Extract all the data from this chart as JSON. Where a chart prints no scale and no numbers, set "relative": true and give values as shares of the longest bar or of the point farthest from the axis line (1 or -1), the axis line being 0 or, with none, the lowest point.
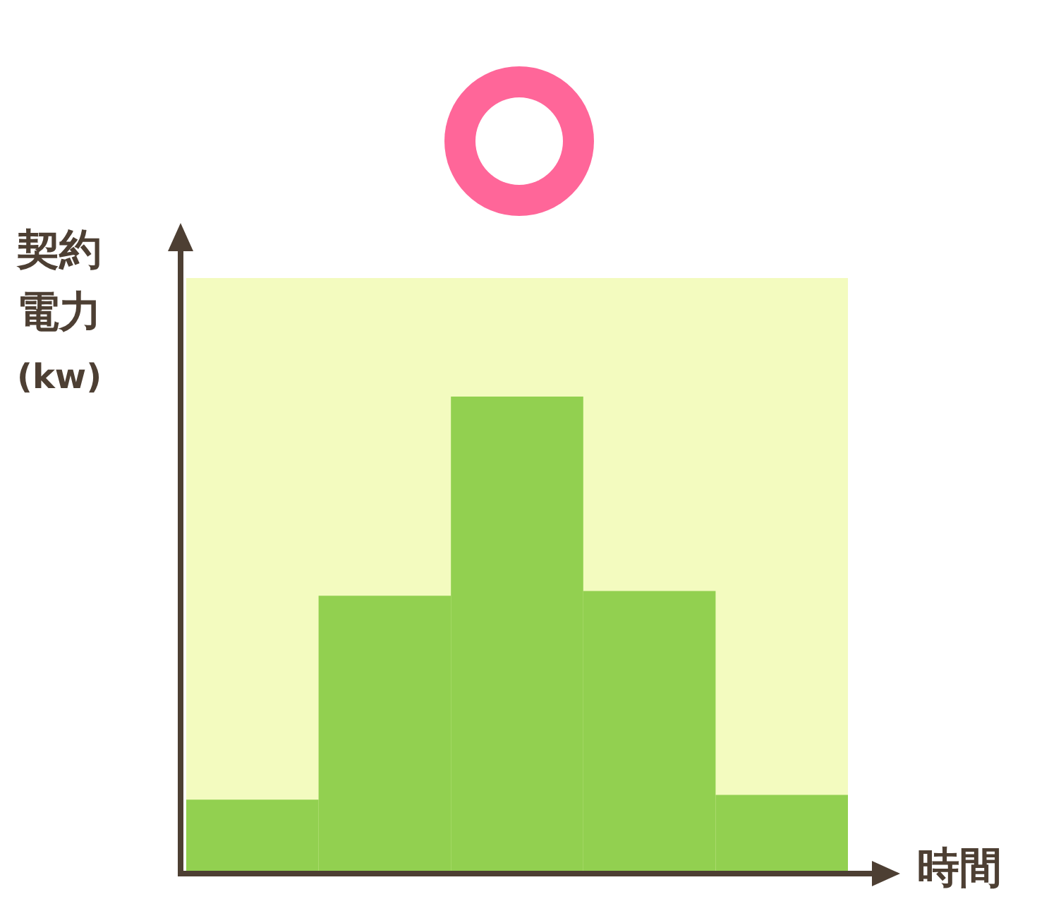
{
  "chart_data": {
    "type": "bar",
    "relative": true,
    "xlabel": "時間",
    "ylabel": "契約電力(kw)",
    "categories": [
      null,
      null,
      null,
      null,
      null
    ],
    "values": [
      0.15,
      0.58,
      1,
      0.59,
      0.16
    ],
    "color": "#92d050",
    "bands": [
      {
        "axis": "y",
        "from": 0,
        "to": 1.25,
        "color": "#f3fbbf"
      }
    ]
  }
}
